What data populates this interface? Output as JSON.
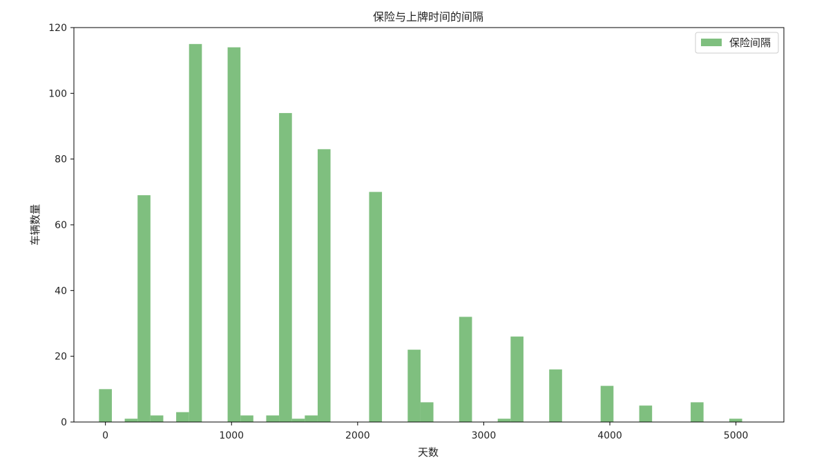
{
  "chart_data": {
    "type": "bar",
    "title": "保险与上牌时间的间隔",
    "xlabel": "天数",
    "ylabel": "车辆数量",
    "xlim": [
      -250,
      5380
    ],
    "ylim": [
      0,
      120
    ],
    "xticks": [
      0,
      1000,
      2000,
      3000,
      4000,
      5000
    ],
    "yticks": [
      0,
      20,
      40,
      60,
      80,
      100,
      120
    ],
    "bin_width": 102,
    "grid": false,
    "legend_position": "top-right",
    "series": [
      {
        "name": "保险间隔",
        "color": "#7fbf7f",
        "bins": [
          {
            "x": 0,
            "value": 10
          },
          {
            "x": 204,
            "value": 1
          },
          {
            "x": 306,
            "value": 69
          },
          {
            "x": 408,
            "value": 2
          },
          {
            "x": 612,
            "value": 3
          },
          {
            "x": 714,
            "value": 115
          },
          {
            "x": 1020,
            "value": 114
          },
          {
            "x": 1122,
            "value": 2
          },
          {
            "x": 1326,
            "value": 2
          },
          {
            "x": 1428,
            "value": 94
          },
          {
            "x": 1530,
            "value": 1
          },
          {
            "x": 1632,
            "value": 2
          },
          {
            "x": 1734,
            "value": 83
          },
          {
            "x": 2142,
            "value": 70
          },
          {
            "x": 2448,
            "value": 22
          },
          {
            "x": 2550,
            "value": 6
          },
          {
            "x": 2856,
            "value": 32
          },
          {
            "x": 3162,
            "value": 1
          },
          {
            "x": 3264,
            "value": 26
          },
          {
            "x": 3570,
            "value": 16
          },
          {
            "x": 3978,
            "value": 11
          },
          {
            "x": 4284,
            "value": 5
          },
          {
            "x": 4692,
            "value": 6
          },
          {
            "x": 4998,
            "value": 1
          }
        ]
      }
    ]
  }
}
